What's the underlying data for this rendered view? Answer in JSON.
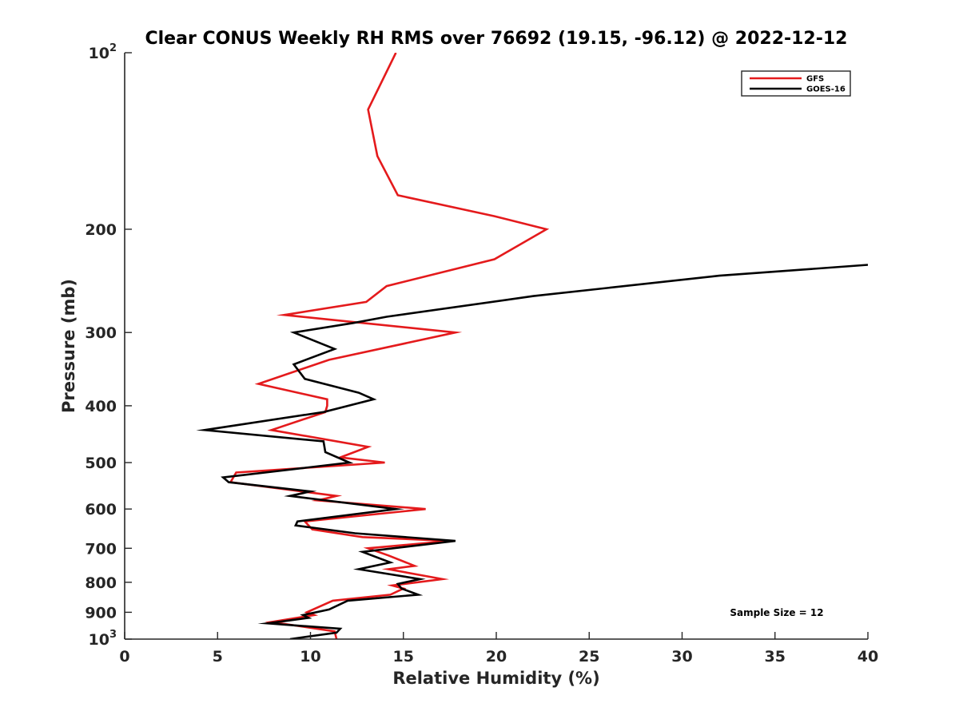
{
  "chart_data": {
    "type": "line",
    "title": "Clear CONUS Weekly RH RMS over 76692 (19.15, -96.12) @ 2022-12-12",
    "xlabel": "Relative Humidity (%)",
    "ylabel": "Pressure (mb)",
    "xlim": [
      0,
      40
    ],
    "ylim": [
      100,
      1000
    ],
    "yscale": "log",
    "ydirection": "reverse",
    "x_ticks": [
      "0",
      "5",
      "10",
      "15",
      "20",
      "25",
      "30",
      "35",
      "40"
    ],
    "y_ticks": [
      {
        "value": 100,
        "base": "10",
        "exp": "2"
      },
      {
        "value": 200,
        "label": "200"
      },
      {
        "value": 300,
        "label": "300"
      },
      {
        "value": 400,
        "label": "400"
      },
      {
        "value": 500,
        "label": "500"
      },
      {
        "value": 600,
        "label": "600"
      },
      {
        "value": 700,
        "label": "700"
      },
      {
        "value": 800,
        "label": "800"
      },
      {
        "value": 900,
        "label": "900"
      },
      {
        "value": 1000,
        "base": "10",
        "exp": "3"
      }
    ],
    "legend_position": "top-right",
    "annotation": "Sample Size = 12",
    "series": [
      {
        "name": "GFS",
        "color": "#e41a1c",
        "points": [
          [
            14.6,
            100
          ],
          [
            13.1,
            125
          ],
          [
            13.6,
            150
          ],
          [
            14.7,
            175
          ],
          [
            19.9,
            190
          ],
          [
            22.7,
            200
          ],
          [
            19.9,
            225
          ],
          [
            14.1,
            250
          ],
          [
            13.0,
            266
          ],
          [
            8.6,
            280
          ],
          [
            17.8,
            300
          ],
          [
            11.0,
            334
          ],
          [
            7.2,
            367
          ],
          [
            10.9,
            390
          ],
          [
            10.9,
            400
          ],
          [
            10.8,
            410
          ],
          [
            7.9,
            440
          ],
          [
            13.1,
            470
          ],
          [
            11.6,
            490
          ],
          [
            14.0,
            500
          ],
          [
            6.0,
            520
          ],
          [
            5.7,
            540
          ],
          [
            11.4,
            570
          ],
          [
            10.4,
            580
          ],
          [
            16.2,
            600
          ],
          [
            9.7,
            630
          ],
          [
            10.1,
            650
          ],
          [
            12.8,
            670
          ],
          [
            17.5,
            680
          ],
          [
            13.1,
            700
          ],
          [
            14.2,
            720
          ],
          [
            15.6,
            750
          ],
          [
            14.2,
            760
          ],
          [
            17.1,
            790
          ],
          [
            14.4,
            810
          ],
          [
            15.0,
            820
          ],
          [
            14.3,
            840
          ],
          [
            11.2,
            860
          ],
          [
            9.8,
            900
          ],
          [
            10.2,
            910
          ],
          [
            7.9,
            935
          ],
          [
            11.3,
            970
          ],
          [
            11.4,
            1000
          ]
        ]
      },
      {
        "name": "GOES-16",
        "color": "#000000",
        "points": [
          [
            40.0,
            230
          ],
          [
            32.0,
            240
          ],
          [
            22.0,
            260
          ],
          [
            14.1,
            282
          ],
          [
            12.3,
            289
          ],
          [
            9.1,
            300
          ],
          [
            11.3,
            320
          ],
          [
            9.1,
            340
          ],
          [
            9.7,
            360
          ],
          [
            12.6,
            380
          ],
          [
            13.4,
            390
          ],
          [
            10.7,
            410
          ],
          [
            4.3,
            440
          ],
          [
            10.7,
            460
          ],
          [
            10.8,
            480
          ],
          [
            12.1,
            500
          ],
          [
            5.3,
            530
          ],
          [
            5.6,
            540
          ],
          [
            10.0,
            560
          ],
          [
            8.9,
            570
          ],
          [
            14.6,
            600
          ],
          [
            9.3,
            630
          ],
          [
            9.2,
            640
          ],
          [
            12.4,
            660
          ],
          [
            17.8,
            680
          ],
          [
            12.8,
            710
          ],
          [
            14.3,
            740
          ],
          [
            12.6,
            760
          ],
          [
            15.9,
            790
          ],
          [
            14.7,
            805
          ],
          [
            14.9,
            820
          ],
          [
            15.8,
            840
          ],
          [
            12.0,
            860
          ],
          [
            11.0,
            890
          ],
          [
            9.6,
            910
          ],
          [
            9.9,
            920
          ],
          [
            7.7,
            940
          ],
          [
            11.6,
            960
          ],
          [
            11.4,
            975
          ],
          [
            8.9,
            1000
          ]
        ]
      }
    ]
  }
}
